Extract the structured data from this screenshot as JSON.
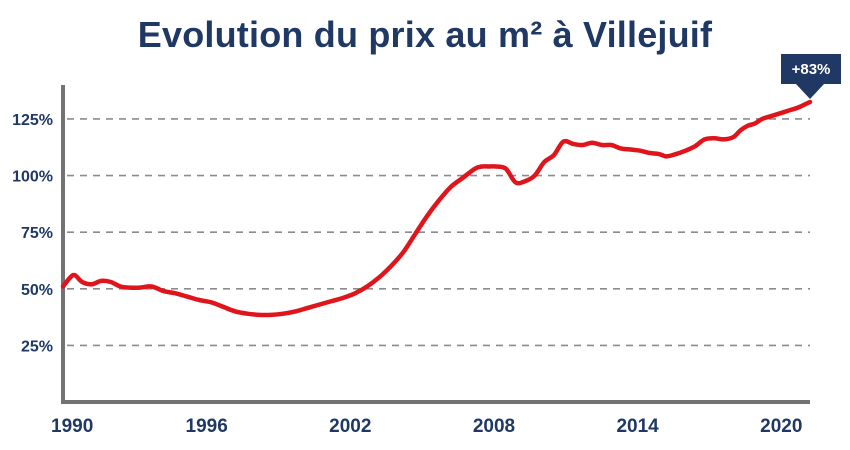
{
  "title": "Evolution du prix au m² à Villejuif",
  "chart_data": {
    "type": "line",
    "title": "Evolution du prix au m² à Villejuif",
    "xlabel": "",
    "ylabel": "",
    "xlim": [
      1990,
      2021.2
    ],
    "ylim": [
      0,
      140
    ],
    "x_ticks": [
      1990,
      1996,
      2002,
      2008,
      2014,
      2020
    ],
    "x_tick_labels": [
      "1990",
      "1996",
      "2002",
      "2008",
      "2014",
      "2020"
    ],
    "y_ticks": [
      25,
      50,
      75,
      100,
      125
    ],
    "y_tick_labels": [
      "25%",
      "50%",
      "75%",
      "100%",
      "125%"
    ],
    "grid": "horizontal dashed",
    "legend": "none",
    "series": [
      {
        "color": "#e0151b",
        "x": [
          1990,
          1990.3,
          1990.5,
          1990.8,
          1991.2,
          1991.6,
          1992.0,
          1992.4,
          1992.8,
          1993.2,
          1993.7,
          1994.2,
          1994.7,
          1995.2,
          1995.7,
          1996.2,
          1996.7,
          1997.2,
          1997.7,
          1998.2,
          1998.7,
          1999.2,
          1999.7,
          2000.2,
          2000.7,
          2001.2,
          2001.7,
          2002.2,
          2002.7,
          2003.2,
          2003.7,
          2004.2,
          2004.7,
          2005.2,
          2005.7,
          2006.2,
          2006.7,
          2007.2,
          2007.5,
          2007.8,
          2008.1,
          2008.5,
          2008.9,
          2009.3,
          2009.7,
          2010.1,
          2010.5,
          2010.9,
          2011.3,
          2011.7,
          2012.1,
          2012.5,
          2012.9,
          2013.3,
          2013.7,
          2014.1,
          2014.5,
          2014.9,
          2015.2,
          2015.6,
          2016.0,
          2016.4,
          2016.8,
          2017.2,
          2017.6,
          2018.0,
          2018.3,
          2018.6,
          2018.9,
          2019.2,
          2019.5,
          2019.8,
          2020.1,
          2020.4,
          2020.7,
          2021.0,
          2021.2
        ],
        "y": [
          51,
          55,
          56,
          53,
          52,
          53.5,
          53,
          51,
          50.5,
          50.5,
          51,
          49,
          48,
          46.5,
          45,
          44,
          42,
          40,
          39,
          38.5,
          38.5,
          39,
          40,
          41.5,
          43,
          44.5,
          46,
          48,
          51,
          55,
          60,
          66,
          74,
          82,
          89,
          95,
          99,
          103,
          104,
          104,
          104,
          103,
          97,
          97.5,
          100,
          106,
          109,
          115,
          114,
          113.5,
          114.5,
          113.5,
          113.5,
          112,
          111.5,
          111,
          110,
          109.5,
          108.5,
          109.5,
          111,
          113,
          116,
          116.5,
          116,
          117,
          120,
          122,
          123,
          125,
          126,
          127,
          128,
          129,
          130,
          131.5,
          132.5
        ]
      }
    ],
    "annotations": [
      {
        "text": "+83%",
        "x": 2021.2,
        "y": 132.5,
        "style": "badge",
        "color": "#1f3864"
      }
    ]
  }
}
